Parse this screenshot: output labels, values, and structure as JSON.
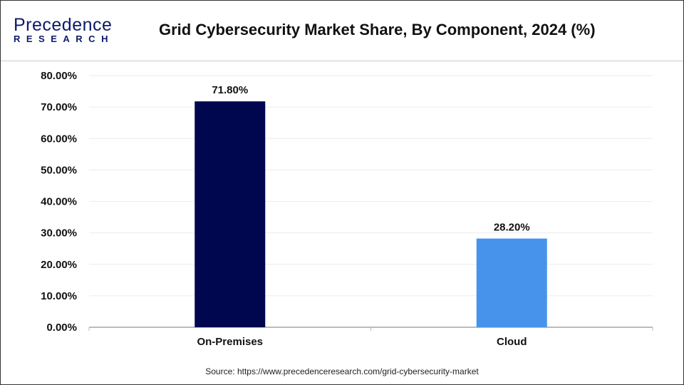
{
  "header": {
    "logo_text_top": "Precedence",
    "logo_text_bottom": "RESEARCH",
    "title": "Grid Cybersecurity Market Share, By Component, 2024 (%)"
  },
  "chart_data": {
    "type": "bar",
    "title": "Grid Cybersecurity Market Share, By Component, 2024 (%)",
    "categories": [
      "On-Premises",
      "Cloud"
    ],
    "values": [
      71.8,
      28.2
    ],
    "data_labels": [
      "71.80%",
      "28.20%"
    ],
    "colors": [
      "#01074f",
      "#4793ec"
    ],
    "ylim": [
      0,
      80
    ],
    "yticks": [
      "0.00%",
      "10.00%",
      "20.00%",
      "30.00%",
      "40.00%",
      "50.00%",
      "60.00%",
      "70.00%",
      "80.00%"
    ],
    "grid": true,
    "xlabel": "",
    "ylabel": ""
  },
  "footer": {
    "source": "Source: https://www.precedenceresearch.com/grid-cybersecurity-market"
  }
}
